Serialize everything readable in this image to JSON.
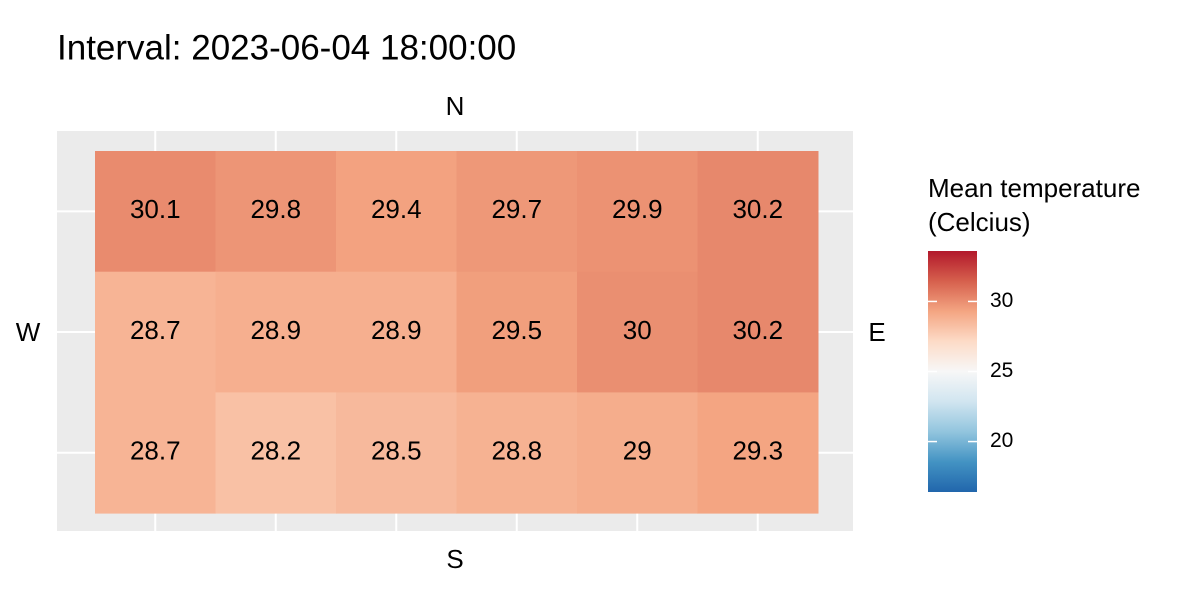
{
  "chart_data": {
    "type": "heatmap",
    "title": "Interval: 2023-06-04 18:00:00",
    "top_label": "N",
    "bottom_label": "S",
    "left_label": "W",
    "right_label": "E",
    "z": [
      [
        30.1,
        29.8,
        29.4,
        29.7,
        29.9,
        30.2
      ],
      [
        28.7,
        28.9,
        28.9,
        29.5,
        30,
        30.2
      ],
      [
        28.7,
        28.2,
        28.5,
        28.8,
        29,
        29.3
      ]
    ],
    "legend_title": [
      "Mean temperature",
      "(Celcius)"
    ],
    "zlim": [
      16.4,
      33.6
    ],
    "zticks": [
      20,
      25,
      30
    ],
    "colorscale": [
      "#2166ac",
      "#4393c3",
      "#92c5de",
      "#d1e5f0",
      "#f7f7f7",
      "#fddbc7",
      "#f4a582",
      "#d6604d",
      "#b2182b"
    ],
    "grid": true
  }
}
